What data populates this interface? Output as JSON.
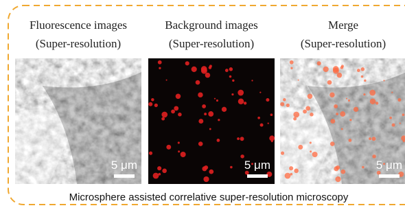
{
  "panels": [
    {
      "title": "Fluorescence images",
      "subtitle": "(Super-resolution)",
      "scale_label": "5 μm"
    },
    {
      "title": "Background images",
      "subtitle": "(Super-resolution)",
      "scale_label": "5 μm"
    },
    {
      "title": "Merge",
      "subtitle": "(Super-resolution)",
      "scale_label": "5 μm"
    }
  ],
  "caption": "Microsphere assisted correlative super-resolution microscopy"
}
